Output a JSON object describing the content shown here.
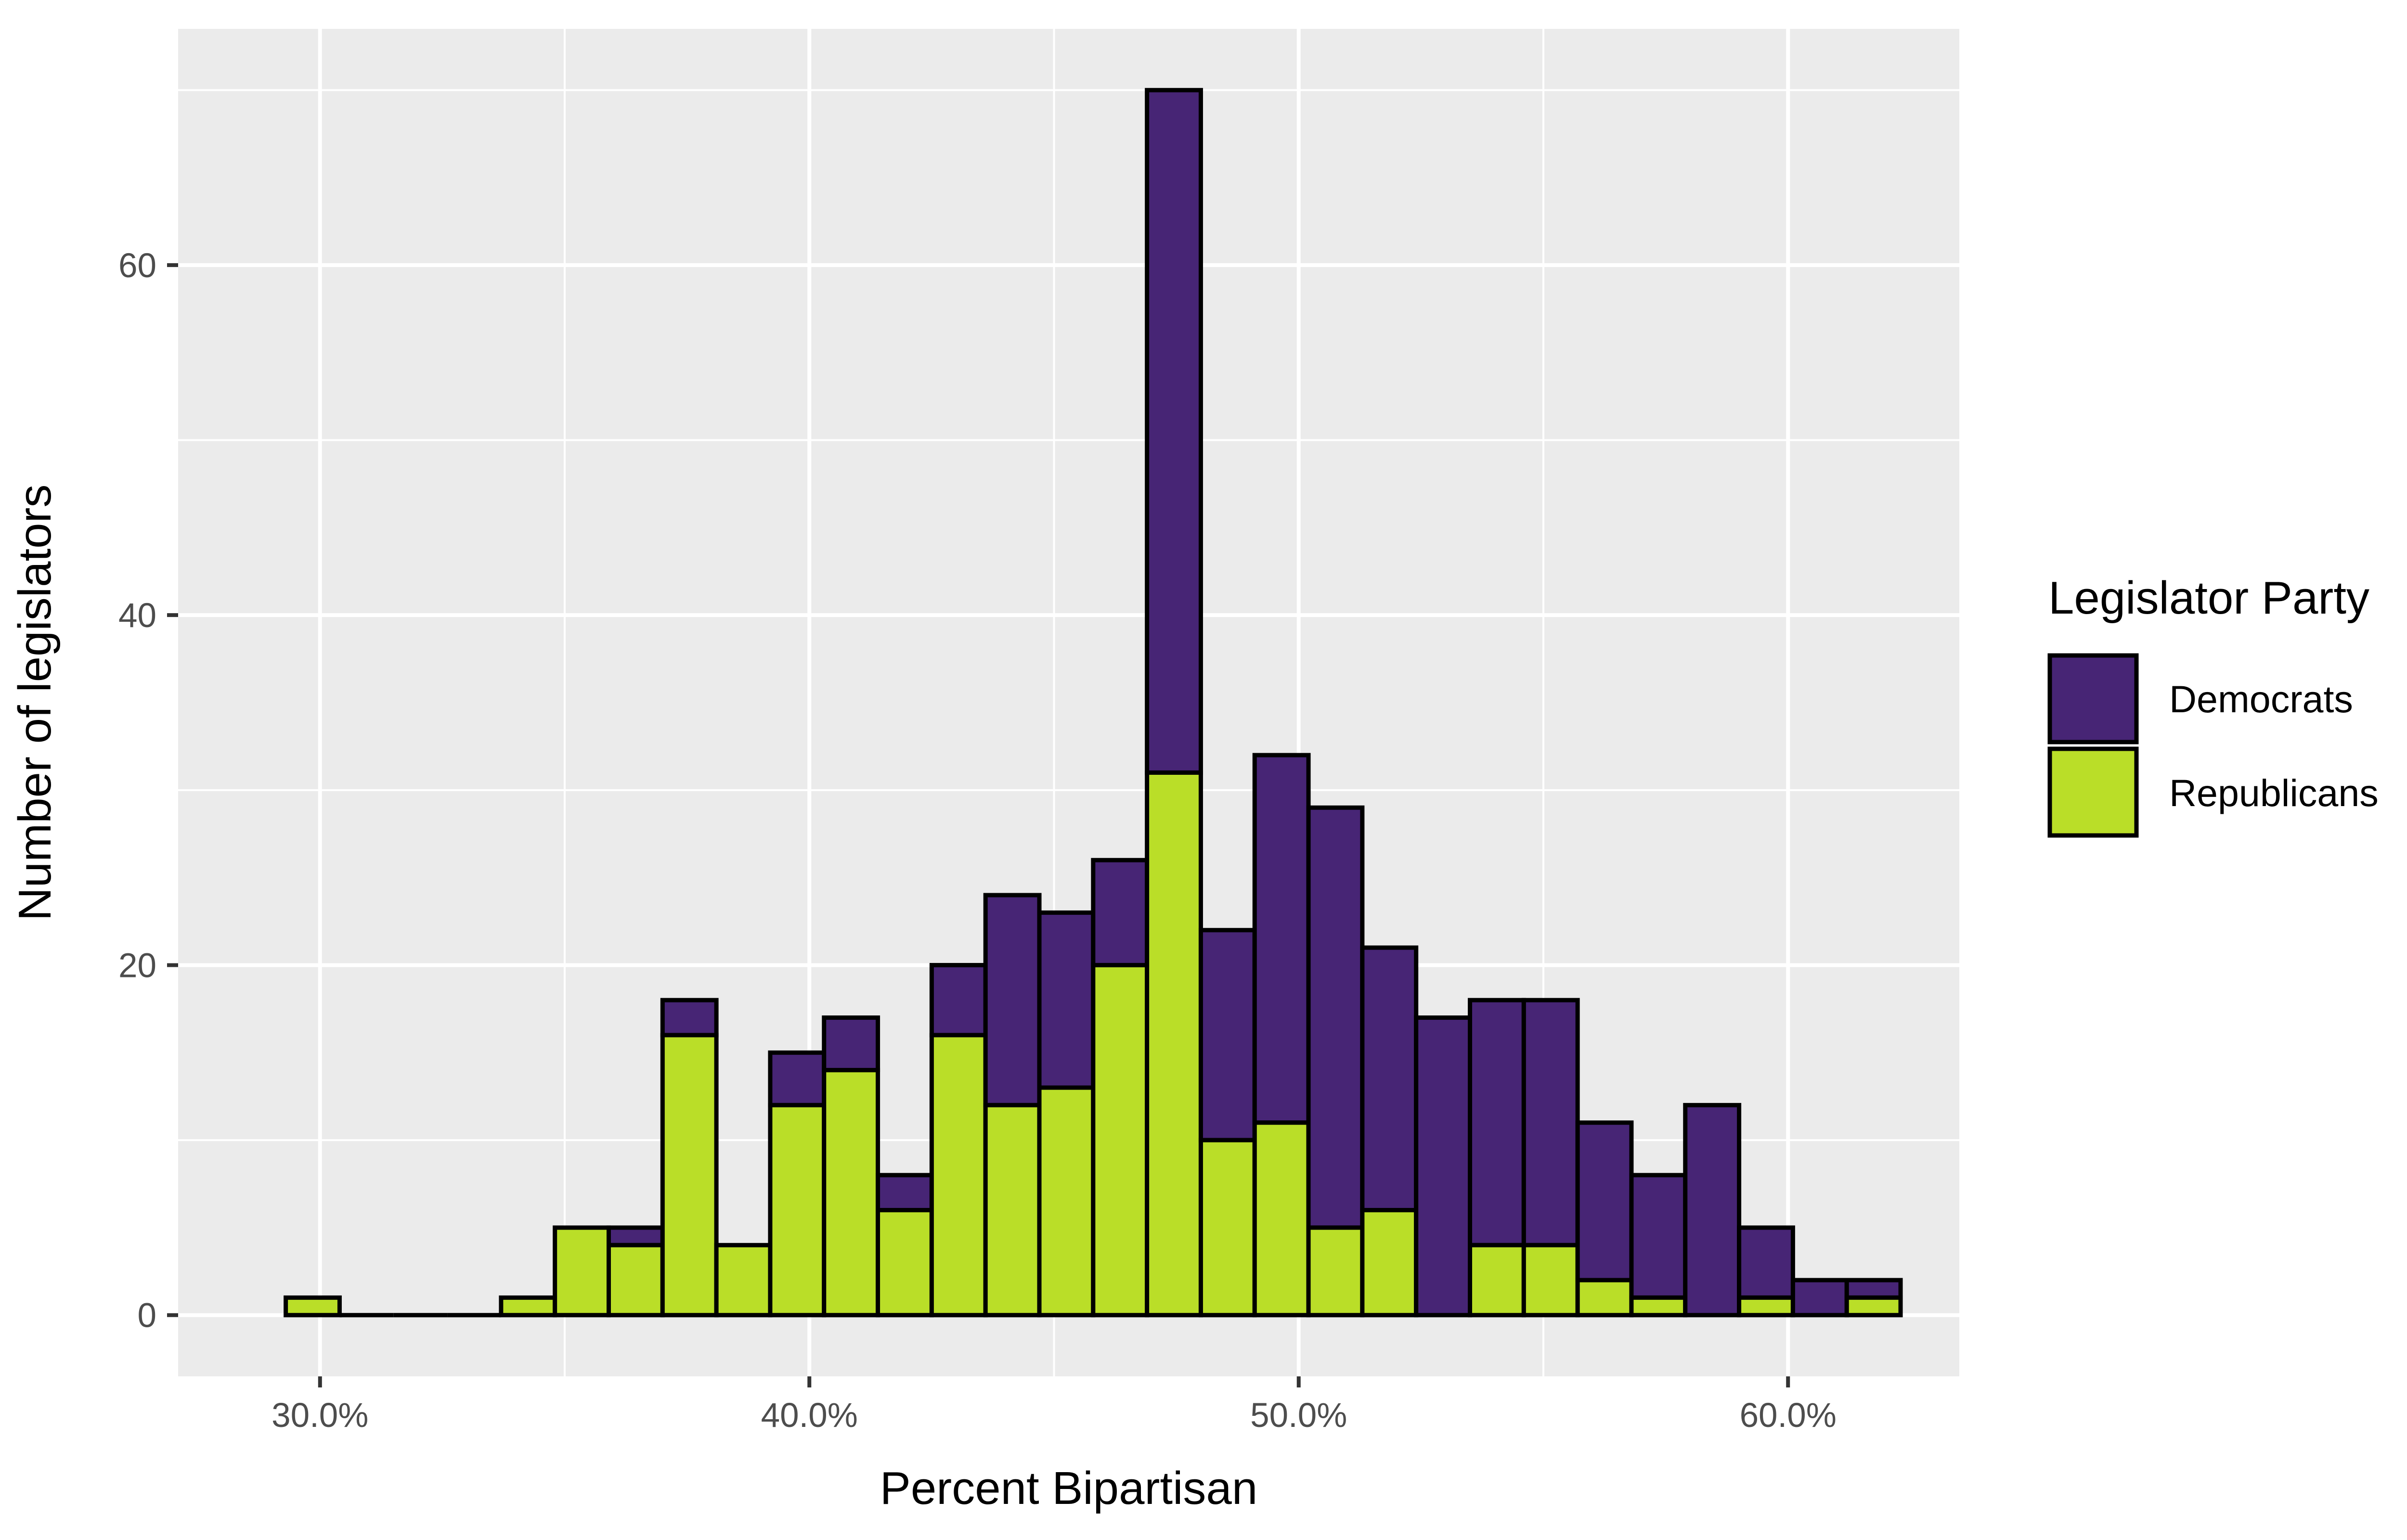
{
  "chart_data": {
    "type": "bar",
    "stacked": true,
    "title": "",
    "xlabel": "Percent Bipartisan",
    "ylabel": "Number of legislators",
    "x_ticks": [
      "30.0%",
      "40.0%",
      "50.0%",
      "60.0%"
    ],
    "x_tick_values": [
      30,
      40,
      50,
      60
    ],
    "y_ticks": [
      "0",
      "20",
      "40",
      "60"
    ],
    "y_tick_values": [
      0,
      20,
      40,
      60
    ],
    "xlim": [
      27.1,
      63.5
    ],
    "ylim": [
      -3.5,
      73.5
    ],
    "bin_width": 1.1,
    "bin_starts": [
      29.3,
      30.4,
      31.5,
      32.6,
      33.7,
      34.8,
      35.9,
      37.0,
      38.1,
      39.2,
      40.3,
      41.4,
      42.5,
      43.6,
      44.7,
      45.8,
      46.9,
      48.0,
      49.1,
      50.2,
      51.3,
      52.4,
      53.5,
      54.6,
      55.7,
      56.8,
      57.9,
      59.0,
      60.1,
      61.2
    ],
    "series": [
      {
        "name": "Republicans",
        "color": "#bade28",
        "values": [
          1,
          0,
          0,
          0,
          1,
          5,
          4,
          16,
          4,
          12,
          14,
          6,
          16,
          12,
          13,
          20,
          31,
          10,
          11,
          5,
          6,
          0,
          4,
          4,
          2,
          1,
          0,
          1,
          0,
          1
        ]
      },
      {
        "name": "Democrats",
        "color": "#472575",
        "values": [
          0,
          0,
          0,
          0,
          0,
          0,
          1,
          2,
          0,
          3,
          3,
          2,
          4,
          12,
          10,
          6,
          39,
          12,
          21,
          24,
          15,
          17,
          14,
          14,
          9,
          7,
          12,
          4,
          2,
          1
        ]
      }
    ],
    "legend": {
      "title": "Legislator Party",
      "position": "right",
      "items": [
        {
          "label": "Democrats",
          "color": "#472575"
        },
        {
          "label": "Republicans",
          "color": "#bade28"
        }
      ]
    },
    "grid": true,
    "panel_background": "#ebebeb",
    "grid_color": "#ffffff",
    "bar_outline": "#000000"
  }
}
